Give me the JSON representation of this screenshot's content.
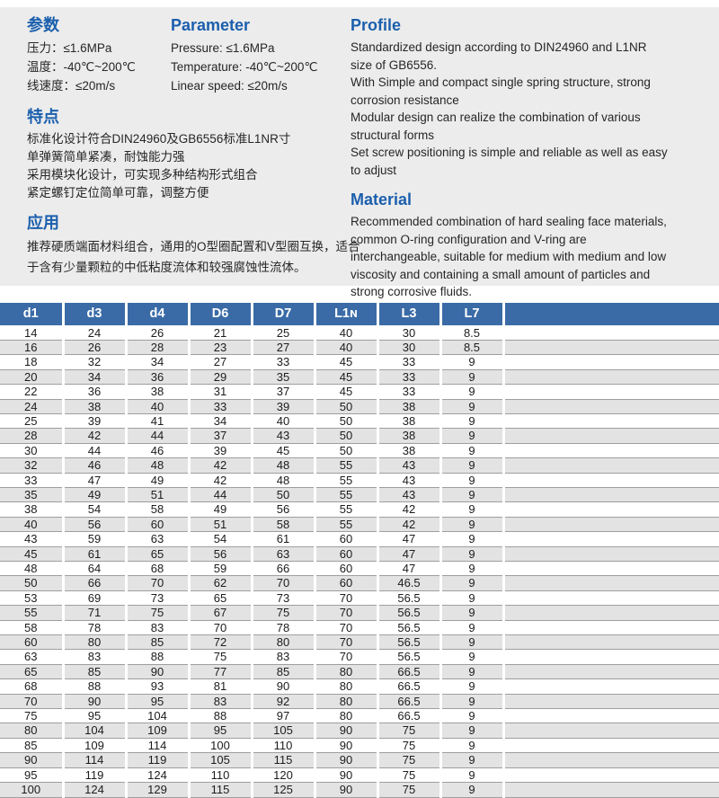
{
  "panel": {
    "params_zh": {
      "title": "参数",
      "lines": [
        "压力：≤1.6MPa",
        "温度：-40℃~200℃",
        "线速度：≤20m/s"
      ]
    },
    "params_en": {
      "title": "Parameter",
      "lines": [
        "Pressure: ≤1.6MPa",
        "Temperature: -40℃~200℃",
        "Linear speed: ≤20m/s"
      ]
    },
    "features": {
      "title": "特点",
      "lines": [
        "标准化设计符合DIN24960及GB6556标准L1NR寸",
        "单弹簧简单紧凑，耐蚀能力强",
        "采用模块化设计，可实现多种结构形式组合",
        "紧定螺钉定位简单可靠，调整方便"
      ]
    },
    "application": {
      "title": "应用",
      "lines": [
        "推荐硬质端面材料组合，通用的O型圈配置和V型圈互换，适合",
        "于含有少量颗粒的中低粘度流体和较强腐蚀性流体。"
      ]
    },
    "profile": {
      "title": "Profile",
      "lines": [
        "Standardized design according to DIN24960 and L1NR",
        "size of GB6556.",
        "With Simple and compact single spring structure, strong",
        "corrosion resistance",
        "Modular design can realize the combination of various",
        "structural forms",
        "Set screw positioning is simple and reliable as well as easy",
        "to adjust"
      ]
    },
    "material": {
      "title": "Material",
      "lines": [
        "Recommended combination of hard sealing face materials,",
        "common O-ring configuration and V-ring are",
        "interchangeable, suitable for medium with medium and low",
        "viscosity and containing a small amount of particles and",
        "strong corrosive fluids."
      ]
    }
  },
  "colors": {
    "heading_blue": "#1b5fad",
    "table_header_blue": "#3a6ba6",
    "panel_gray": "#ececec",
    "alt_row_gray": "#e3e3e3"
  },
  "table": {
    "headers": [
      "d1",
      "d3",
      "d4",
      "D6",
      "D7",
      "L1ɴ",
      "L3",
      "L7",
      ""
    ],
    "rows": [
      [
        14,
        24,
        26,
        21,
        25,
        40,
        30,
        8.5
      ],
      [
        16,
        26,
        28,
        23,
        27,
        40,
        30,
        8.5
      ],
      [
        18,
        32,
        34,
        27,
        33,
        45,
        33,
        9
      ],
      [
        20,
        34,
        36,
        29,
        35,
        45,
        33,
        9
      ],
      [
        22,
        36,
        38,
        31,
        37,
        45,
        33,
        9
      ],
      [
        24,
        38,
        40,
        33,
        39,
        50,
        38,
        9
      ],
      [
        25,
        39,
        41,
        34,
        40,
        50,
        38,
        9
      ],
      [
        28,
        42,
        44,
        37,
        43,
        50,
        38,
        9
      ],
      [
        30,
        44,
        46,
        39,
        45,
        50,
        38,
        9
      ],
      [
        32,
        46,
        48,
        42,
        48,
        55,
        43,
        9
      ],
      [
        33,
        47,
        49,
        42,
        48,
        55,
        43,
        9
      ],
      [
        35,
        49,
        51,
        44,
        50,
        55,
        43,
        9
      ],
      [
        38,
        54,
        58,
        49,
        56,
        55,
        42,
        9
      ],
      [
        40,
        56,
        60,
        51,
        58,
        55,
        42,
        9
      ],
      [
        43,
        59,
        63,
        54,
        61,
        60,
        47,
        9
      ],
      [
        45,
        61,
        65,
        56,
        63,
        60,
        47,
        9
      ],
      [
        48,
        64,
        68,
        59,
        66,
        60,
        47,
        9
      ],
      [
        50,
        66,
        70,
        62,
        70,
        60,
        46.5,
        9
      ],
      [
        53,
        69,
        73,
        65,
        73,
        70,
        56.5,
        9
      ],
      [
        55,
        71,
        75,
        67,
        75,
        70,
        56.5,
        9
      ],
      [
        58,
        78,
        83,
        70,
        78,
        70,
        56.5,
        9
      ],
      [
        60,
        80,
        85,
        72,
        80,
        70,
        56.5,
        9
      ],
      [
        63,
        83,
        88,
        75,
        83,
        70,
        56.5,
        9
      ],
      [
        65,
        85,
        90,
        77,
        85,
        80,
        66.5,
        9
      ],
      [
        68,
        88,
        93,
        81,
        90,
        80,
        66.5,
        9
      ],
      [
        70,
        90,
        95,
        83,
        92,
        80,
        66.5,
        9
      ],
      [
        75,
        95,
        104,
        88,
        97,
        80,
        66.5,
        9
      ],
      [
        80,
        104,
        109,
        95,
        105,
        90,
        75,
        9
      ],
      [
        85,
        109,
        114,
        100,
        110,
        90,
        75,
        9
      ],
      [
        90,
        114,
        119,
        105,
        115,
        90,
        75,
        9
      ],
      [
        95,
        119,
        124,
        110,
        120,
        90,
        75,
        9
      ],
      [
        100,
        124,
        129,
        115,
        125,
        90,
        75,
        9
      ]
    ]
  }
}
